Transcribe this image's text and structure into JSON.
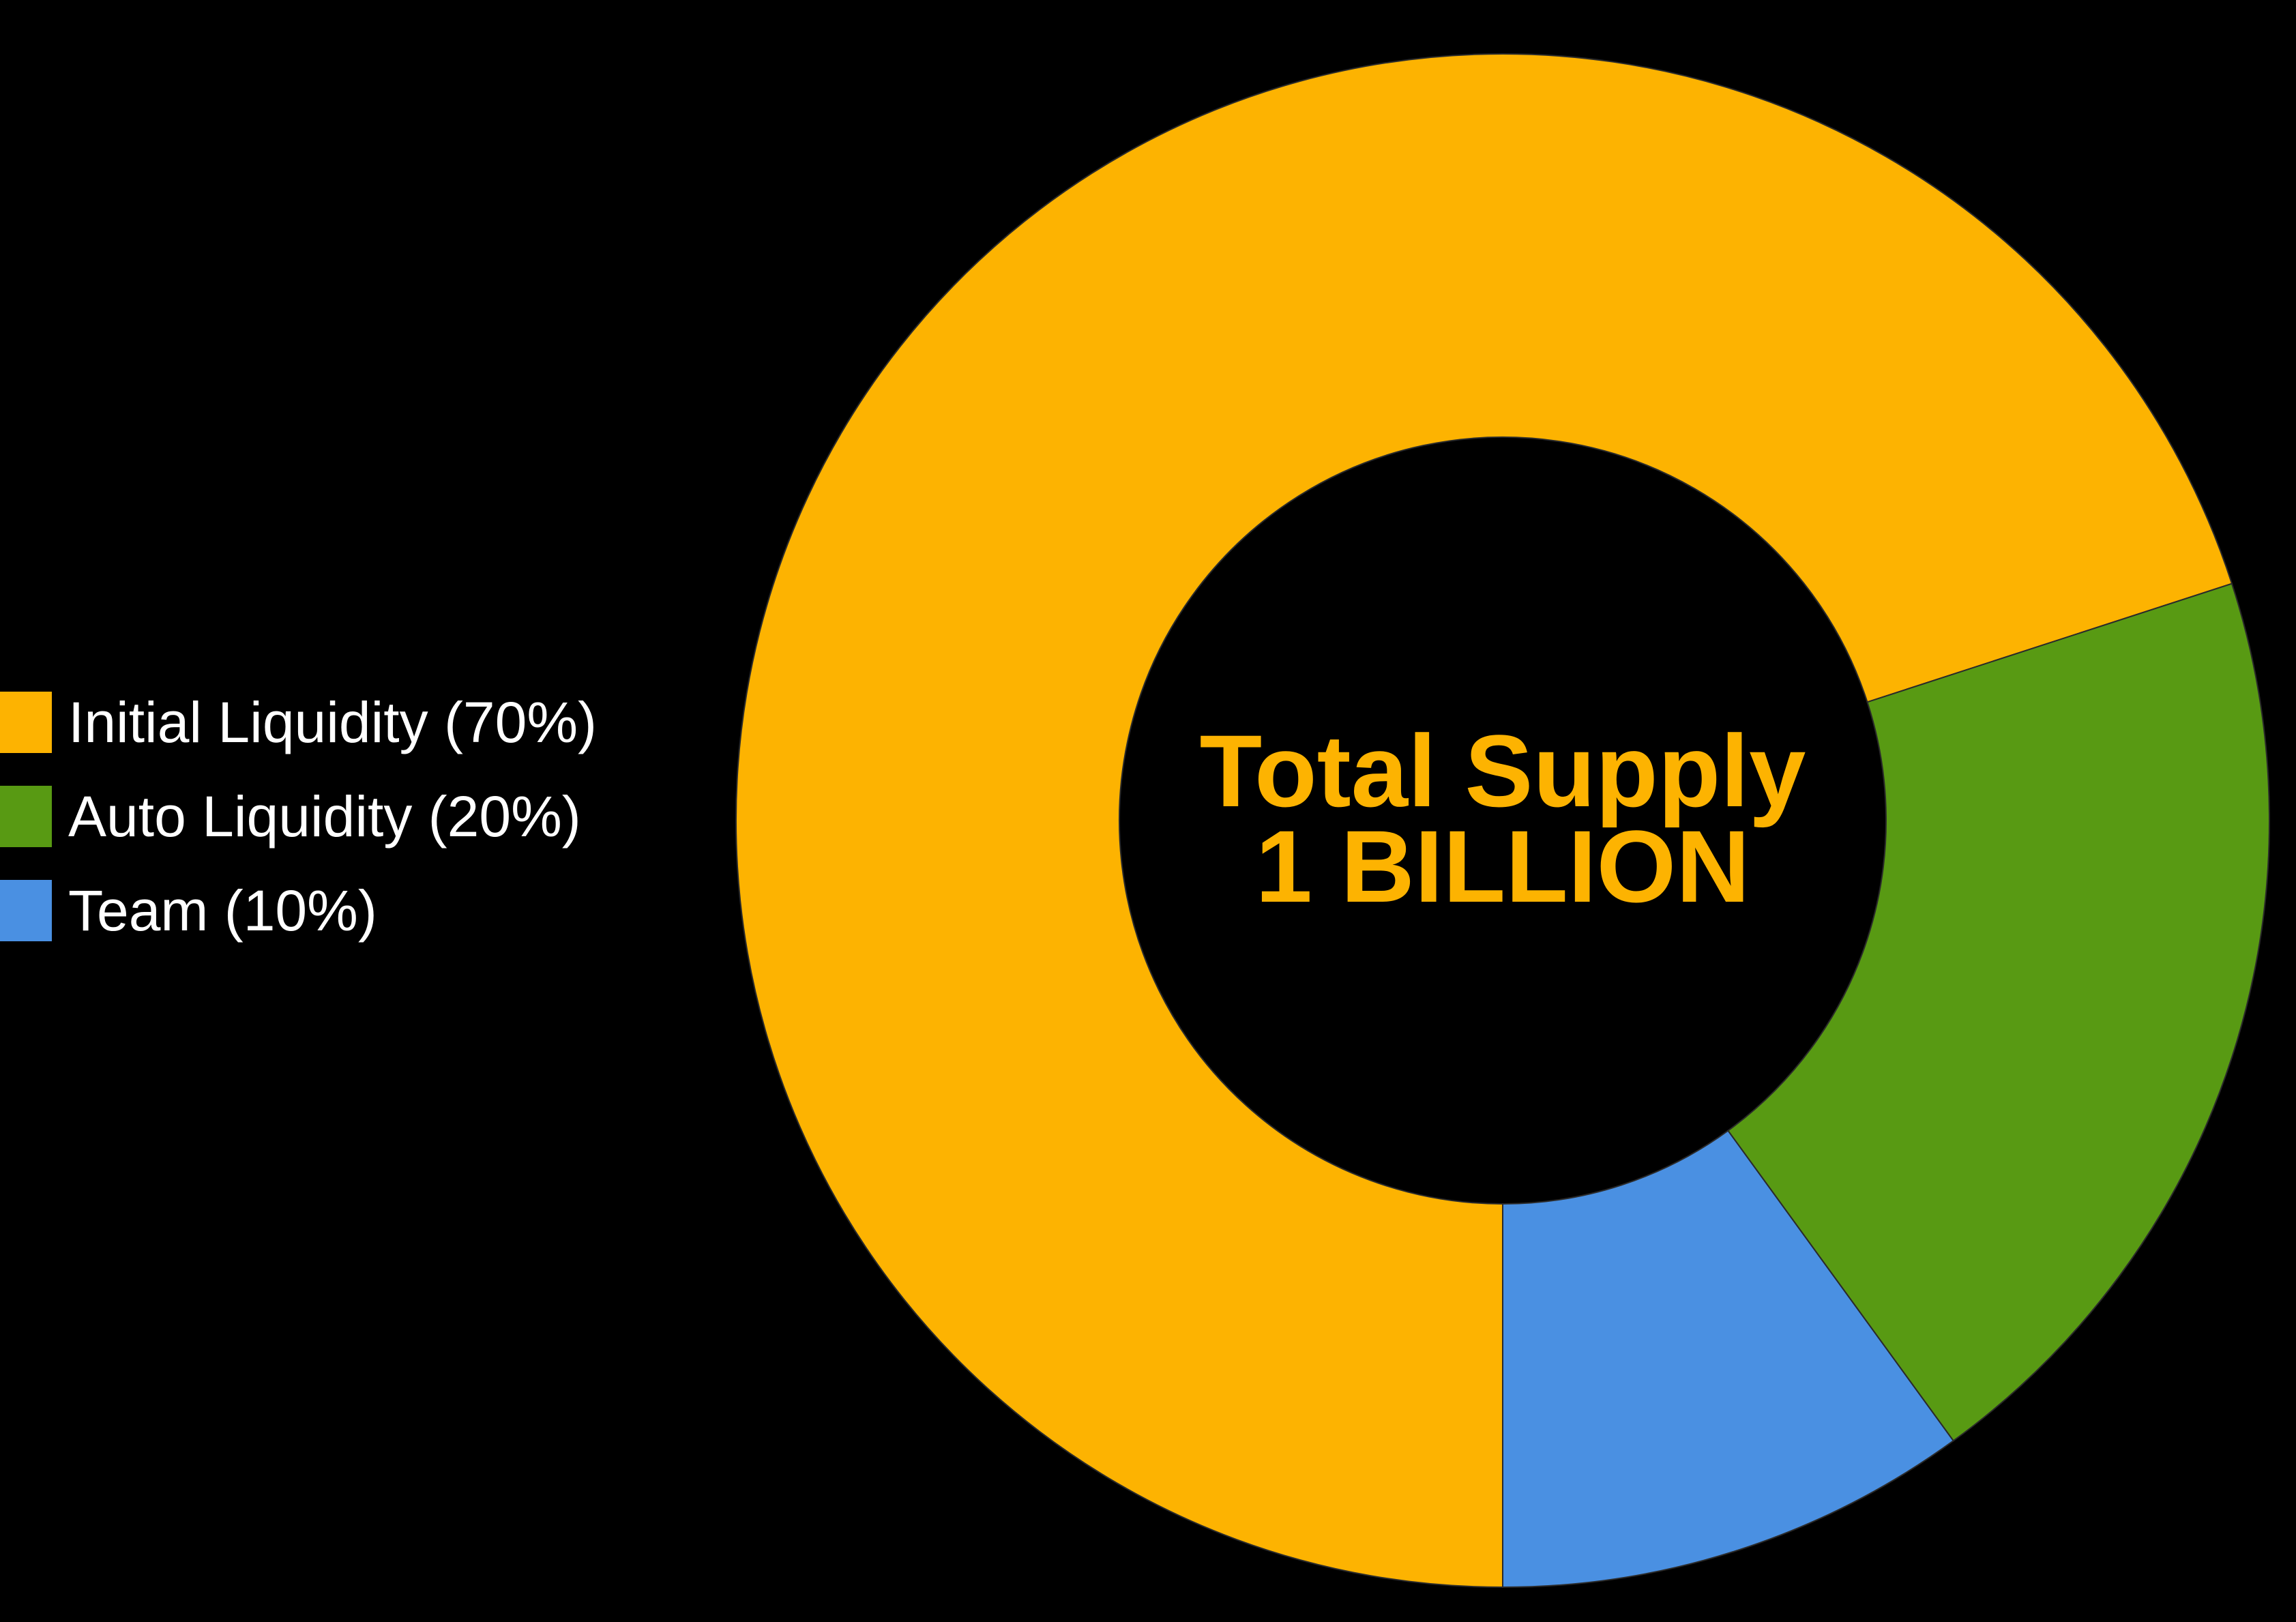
{
  "chart_data": {
    "type": "pie",
    "style": "donut",
    "categories": [
      "Initial Liquidity",
      "Auto Liquidity",
      "Team"
    ],
    "values": [
      70,
      20,
      10
    ],
    "legend_labels": [
      "Initial Liquidity (70%)",
      "Auto Liquidity (20%)",
      "Team (10%)"
    ],
    "colors": [
      "#fdb301",
      "#589a13",
      "#4a90e2"
    ],
    "legend_position": "left",
    "center_text": [
      "Total Supply",
      "1 BILLION"
    ],
    "center_text_color": "#fdb301",
    "background": "#000000",
    "start_angle_deg": 180,
    "direction": "clockwise"
  }
}
